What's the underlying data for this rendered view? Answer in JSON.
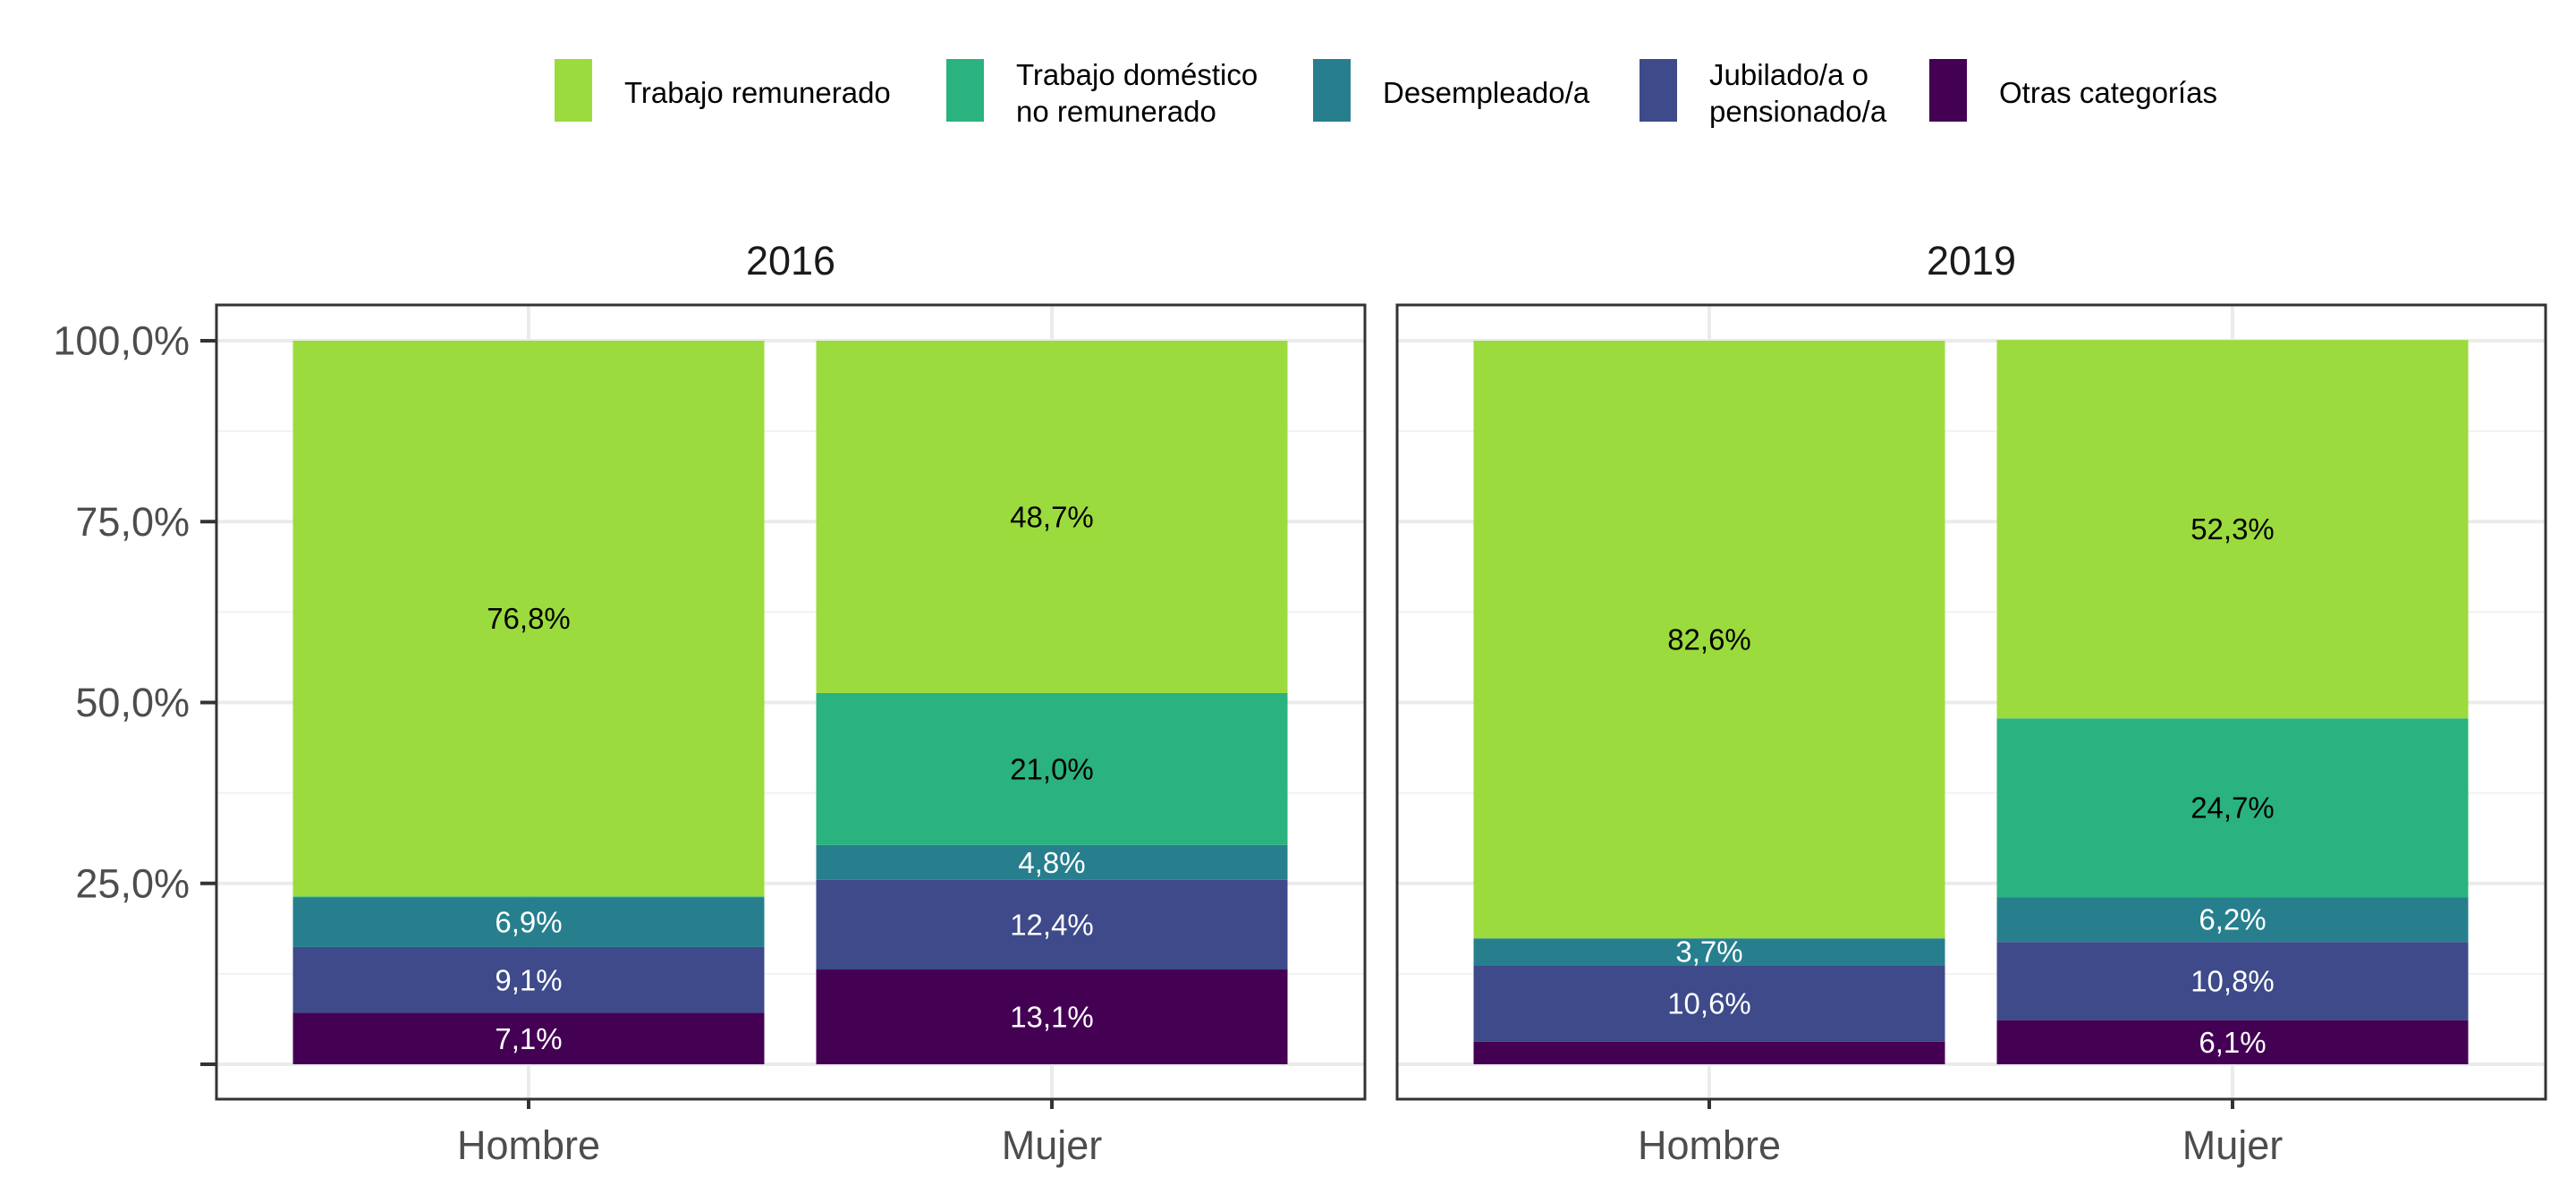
{
  "chart_data": {
    "type": "bar",
    "stacked": true,
    "legend": {
      "position": "top",
      "entries": [
        {
          "key": "trabajo_remunerado",
          "lines": [
            "Trabajo remunerado"
          ],
          "color": "#9bdb3d"
        },
        {
          "key": "trabajo_domestico",
          "lines": [
            "Trabajo doméstico",
            "no remunerado"
          ],
          "color": "#2ab27f"
        },
        {
          "key": "desempleado",
          "lines": [
            "Desempleado/a"
          ],
          "color": "#277f8e"
        },
        {
          "key": "jubilado",
          "lines": [
            "Jubilado/a o",
            "pensionado/a"
          ],
          "color": "#3e4a89"
        },
        {
          "key": "otras",
          "lines": [
            "Otras categorías"
          ],
          "color": "#440154"
        }
      ]
    },
    "y_axis": {
      "ylim": [
        0,
        100
      ],
      "ticks": [
        0,
        25,
        50,
        75,
        100
      ],
      "tick_labels": [
        "",
        "25,0%",
        "50,0%",
        "75,0%",
        "100,0%"
      ]
    },
    "grid": true,
    "panels": [
      {
        "title": "2016",
        "categories": [
          "Hombre",
          "Mujer"
        ],
        "bars": [
          {
            "category": "Hombre",
            "segments": [
              {
                "key": "otras",
                "value": 7.1,
                "label": "7,1%"
              },
              {
                "key": "jubilado",
                "value": 9.1,
                "label": "9,1%"
              },
              {
                "key": "desempleado",
                "value": 6.9,
                "label": "6,9%"
              },
              {
                "key": "trabajo_domestico",
                "value": 0.1,
                "label": ""
              },
              {
                "key": "trabajo_remunerado",
                "value": 76.8,
                "label": "76,8%"
              }
            ]
          },
          {
            "category": "Mujer",
            "segments": [
              {
                "key": "otras",
                "value": 13.1,
                "label": "13,1%"
              },
              {
                "key": "jubilado",
                "value": 12.4,
                "label": "12,4%"
              },
              {
                "key": "desempleado",
                "value": 4.8,
                "label": "4,8%"
              },
              {
                "key": "trabajo_domestico",
                "value": 21.0,
                "label": "21,0%"
              },
              {
                "key": "trabajo_remunerado",
                "value": 48.7,
                "label": "48,7%"
              }
            ]
          }
        ]
      },
      {
        "title": "2019",
        "categories": [
          "Hombre",
          "Mujer"
        ],
        "bars": [
          {
            "category": "Hombre",
            "segments": [
              {
                "key": "otras",
                "value": 3.1,
                "label": ""
              },
              {
                "key": "jubilado",
                "value": 10.6,
                "label": "10,6%"
              },
              {
                "key": "desempleado",
                "value": 3.7,
                "label": "3,7%"
              },
              {
                "key": "trabajo_domestico",
                "value": 0.0,
                "label": ""
              },
              {
                "key": "trabajo_remunerado",
                "value": 82.6,
                "label": "82,6%"
              }
            ]
          },
          {
            "category": "Mujer",
            "segments": [
              {
                "key": "otras",
                "value": 6.1,
                "label": "6,1%"
              },
              {
                "key": "jubilado",
                "value": 10.8,
                "label": "10,8%"
              },
              {
                "key": "desempleado",
                "value": 6.2,
                "label": "6,2%"
              },
              {
                "key": "trabajo_domestico",
                "value": 24.7,
                "label": "24,7%"
              },
              {
                "key": "trabajo_remunerado",
                "value": 52.3,
                "label": "52,3%"
              }
            ]
          }
        ]
      }
    ]
  }
}
